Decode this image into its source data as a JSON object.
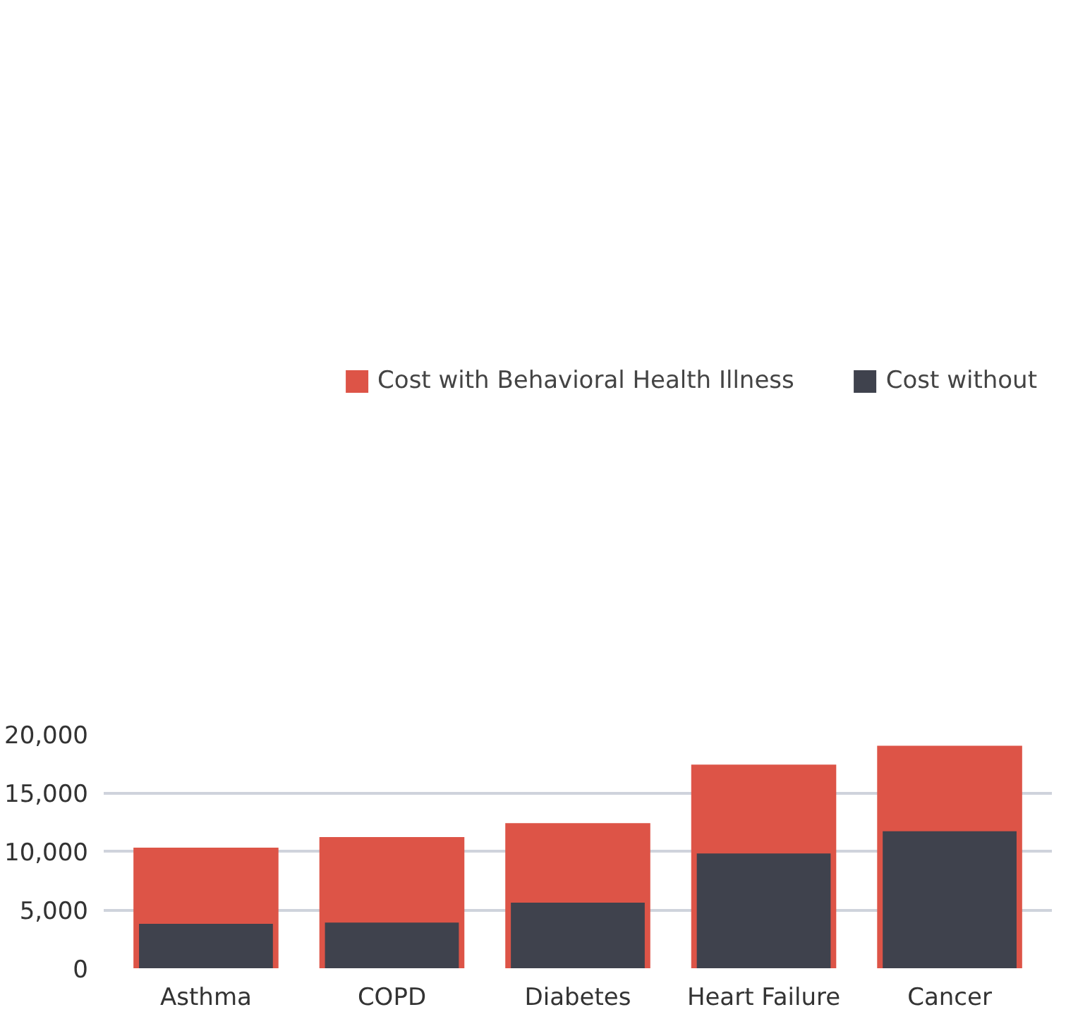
{
  "chart_data": {
    "type": "bar",
    "categories": [
      "Asthma",
      "COPD",
      "Diabetes",
      "Heart Failure",
      "Cancer"
    ],
    "series": [
      {
        "name": "Cost with Behavioral Health Illness",
        "color": "#dd5447",
        "values": [
          10300,
          11200,
          12400,
          17400,
          19000
        ]
      },
      {
        "name": "Cost without",
        "color": "#3f424d",
        "values": [
          3800,
          3900,
          5600,
          9800,
          11700
        ]
      }
    ],
    "ylim": [
      0,
      20000
    ],
    "yticks": [
      {
        "value": 0,
        "label": "0"
      },
      {
        "value": 5000,
        "label": "5,000"
      },
      {
        "value": 10000,
        "label": "10,000"
      },
      {
        "value": 15000,
        "label": "15,000"
      },
      {
        "value": 20000,
        "label": "20,000"
      }
    ],
    "grid": "y",
    "legend": "top"
  }
}
